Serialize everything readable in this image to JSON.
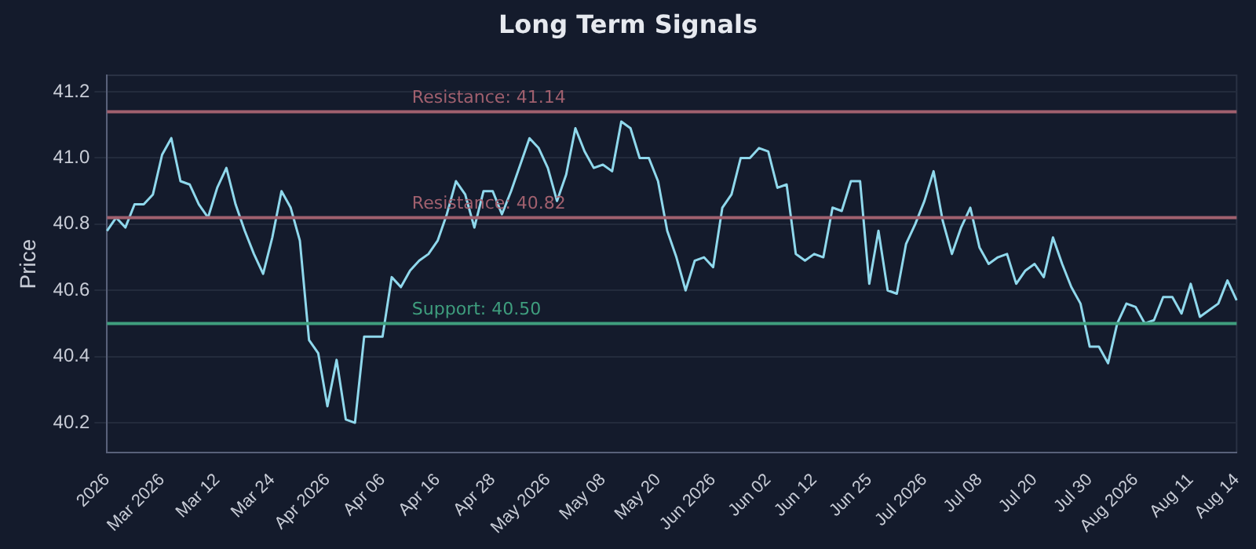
{
  "chart_data": {
    "type": "line",
    "title": "Long Term Signals",
    "ylabel": "Price",
    "categories": [
      "2026",
      null,
      null,
      null,
      null,
      null,
      "Mar 2026",
      null,
      null,
      null,
      null,
      null,
      "Mar 12",
      null,
      null,
      null,
      null,
      null,
      "Mar 24",
      null,
      null,
      null,
      null,
      null,
      "Apr 2026",
      null,
      null,
      null,
      null,
      null,
      "Apr 06",
      null,
      null,
      null,
      null,
      null,
      "Apr 16",
      null,
      null,
      null,
      null,
      null,
      "Apr 28",
      null,
      null,
      null,
      null,
      null,
      "May 2026",
      null,
      null,
      null,
      null,
      null,
      "May 08",
      null,
      null,
      null,
      null,
      null,
      "May 20",
      null,
      null,
      null,
      null,
      null,
      "Jun 2026",
      null,
      null,
      null,
      null,
      null,
      "Jun 02",
      null,
      null,
      null,
      null,
      "Jun 12",
      null,
      null,
      null,
      null,
      null,
      "Jun 25",
      null,
      null,
      null,
      null,
      null,
      "Jul 2026",
      null,
      null,
      null,
      null,
      null,
      "Jul 08",
      null,
      null,
      null,
      null,
      null,
      "Jul 20",
      null,
      null,
      null,
      null,
      null,
      "Jul 30",
      null,
      null,
      null,
      null,
      "Aug 2026",
      null,
      null,
      null,
      null,
      null,
      "Aug 11",
      null,
      null,
      null,
      null,
      "Aug 14"
    ],
    "series": [
      {
        "color": "#8fd8ec",
        "values": [
          40.78,
          40.82,
          40.79,
          40.86,
          40.86,
          40.89,
          41.01,
          41.06,
          40.93,
          40.92,
          40.86,
          40.82,
          40.91,
          40.97,
          40.86,
          40.78,
          40.71,
          40.65,
          40.76,
          40.9,
          40.85,
          40.75,
          40.45,
          40.41,
          40.25,
          40.39,
          40.21,
          40.2,
          40.46,
          40.46,
          40.46,
          40.64,
          40.61,
          40.66,
          40.69,
          40.71,
          40.75,
          40.83,
          40.93,
          40.89,
          40.79,
          40.9,
          40.9,
          40.83,
          40.9,
          40.98,
          41.06,
          41.03,
          40.97,
          40.87,
          40.95,
          41.09,
          41.02,
          40.97,
          40.98,
          40.96,
          41.11,
          41.09,
          41.0,
          41.0,
          40.93,
          40.78,
          40.7,
          40.6,
          40.69,
          40.7,
          40.67,
          40.85,
          40.89,
          41.0,
          41.0,
          41.03,
          41.02,
          40.91,
          40.92,
          40.71,
          40.69,
          40.71,
          40.7,
          40.85,
          40.84,
          40.93,
          40.93,
          40.62,
          40.78,
          40.6,
          40.59,
          40.74,
          40.8,
          40.87,
          40.96,
          40.81,
          40.71,
          40.79,
          40.85,
          40.73,
          40.68,
          40.7,
          40.71,
          40.62,
          40.66,
          40.68,
          40.64,
          40.76,
          40.68,
          40.61,
          40.56,
          40.43,
          40.43,
          40.38,
          40.5,
          40.56,
          40.55,
          40.5,
          40.51,
          40.58,
          40.58,
          40.53,
          40.62,
          40.52,
          40.54,
          40.56,
          40.63,
          40.57
        ]
      }
    ],
    "ylim": [
      40.11,
      41.25
    ],
    "yticks": [
      40.2,
      40.4,
      40.6,
      40.8,
      {
        "value": 41,
        "label": "41.0"
      },
      41.2
    ],
    "grid": "y",
    "marker": "none",
    "line_style": "solid",
    "legend": false,
    "ref_lines": [
      {
        "axis": "y",
        "value": 41.14,
        "label": "Resistance: 41.14",
        "color": "#a0606e"
      },
      {
        "axis": "y",
        "value": 40.82,
        "label": "Resistance: 40.82",
        "color": "#a0606e"
      },
      {
        "axis": "y",
        "value": 40.5,
        "label": "Support: 40.50",
        "color": "#3f9e7e"
      }
    ]
  }
}
